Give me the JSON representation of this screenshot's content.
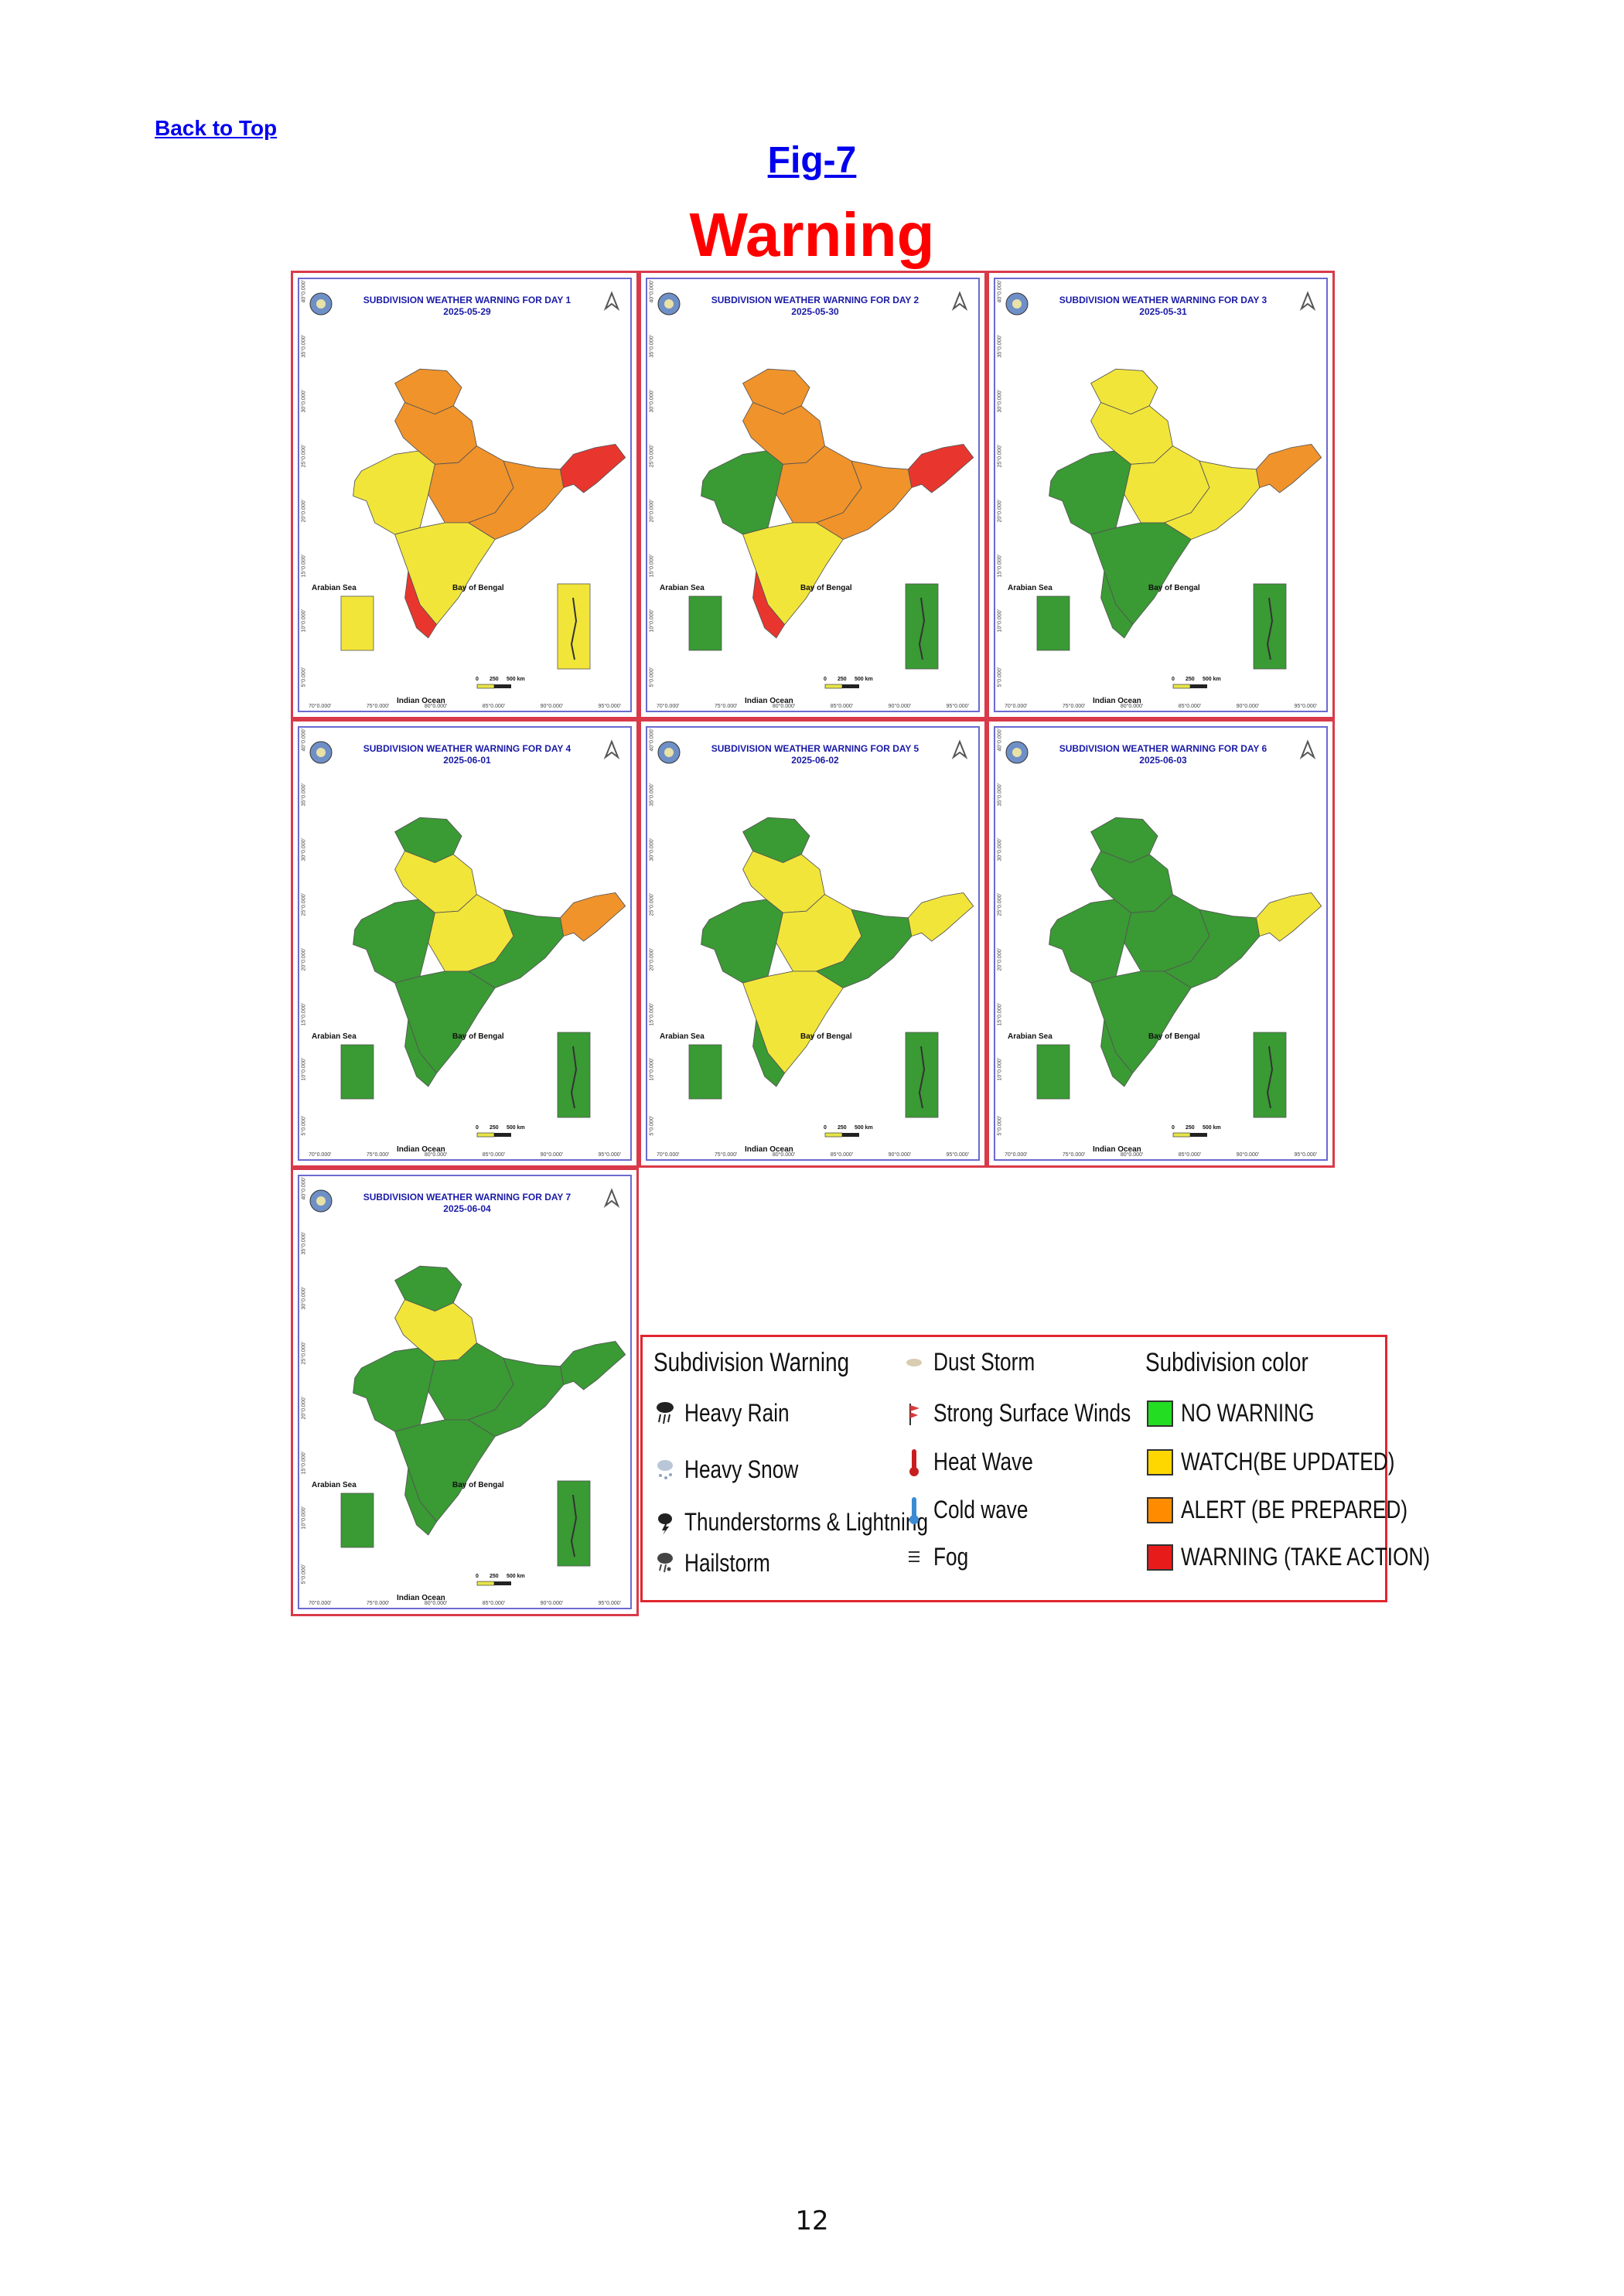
{
  "page": {
    "back_link": "Back to Top",
    "figure_label": "Fig-7",
    "heading": "Warning",
    "page_number": "12"
  },
  "map_common": {
    "arabian_sea": "Arabian Sea",
    "bay_of_bengal": "Bay of Bengal",
    "indian_ocean": "Indian Ocean",
    "scale_labels": [
      "0",
      "250",
      "500 km"
    ],
    "lon_ticks": [
      "70°0.000'",
      "75°0.000'",
      "80°0.000'",
      "85°0.000'",
      "90°0.000'",
      "95°0.000'"
    ],
    "lat_ticks": [
      "40°0.000'",
      "35°0.000'",
      "30°0.000'",
      "25°0.000'",
      "20°0.000'",
      "15°0.000'",
      "10°0.000'",
      "5°0.000'"
    ]
  },
  "maps": [
    {
      "title": "SUBDIVISION WEATHER WARNING FOR DAY 1",
      "date": "2025-05-29",
      "colors": {
        "jk": "#f0932b",
        "north": "#f0932b",
        "west": "#f2e53a",
        "central": "#f0932b",
        "east": "#f0932b",
        "south": "#f2e53a",
        "kerala": "#e8362f",
        "ne": "#e8362f",
        "islands": "#f2e53a"
      }
    },
    {
      "title": "SUBDIVISION WEATHER WARNING FOR DAY 2",
      "date": "2025-05-30",
      "colors": {
        "jk": "#f0932b",
        "north": "#f0932b",
        "west": "#3a9a34",
        "central": "#f0932b",
        "east": "#f0932b",
        "south": "#f2e53a",
        "kerala": "#e8362f",
        "ne": "#e8362f",
        "islands": "#3a9a34"
      }
    },
    {
      "title": "SUBDIVISION WEATHER WARNING FOR DAY 3",
      "date": "2025-05-31",
      "colors": {
        "jk": "#f2e53a",
        "north": "#f2e53a",
        "west": "#3a9a34",
        "central": "#f2e53a",
        "east": "#f2e53a",
        "south": "#3a9a34",
        "kerala": "#3a9a34",
        "ne": "#f0932b",
        "islands": "#3a9a34"
      }
    },
    {
      "title": "SUBDIVISION WEATHER WARNING FOR DAY 4",
      "date": "2025-06-01",
      "colors": {
        "jk": "#3a9a34",
        "north": "#f2e53a",
        "west": "#3a9a34",
        "central": "#f2e53a",
        "east": "#3a9a34",
        "south": "#3a9a34",
        "kerala": "#3a9a34",
        "ne": "#f0932b",
        "islands": "#3a9a34"
      }
    },
    {
      "title": "SUBDIVISION WEATHER WARNING FOR DAY 5",
      "date": "2025-06-02",
      "colors": {
        "jk": "#3a9a34",
        "north": "#f2e53a",
        "west": "#3a9a34",
        "central": "#f2e53a",
        "east": "#3a9a34",
        "south": "#f2e53a",
        "kerala": "#3a9a34",
        "ne": "#f2e53a",
        "islands": "#3a9a34"
      }
    },
    {
      "title": "SUBDIVISION WEATHER WARNING FOR DAY 6",
      "date": "2025-06-03",
      "colors": {
        "jk": "#3a9a34",
        "north": "#3a9a34",
        "west": "#3a9a34",
        "central": "#3a9a34",
        "east": "#3a9a34",
        "south": "#3a9a34",
        "kerala": "#3a9a34",
        "ne": "#f2e53a",
        "islands": "#3a9a34"
      }
    },
    {
      "title": "SUBDIVISION WEATHER WARNING FOR DAY 7",
      "date": "2025-06-04",
      "colors": {
        "jk": "#3a9a34",
        "north": "#f2e53a",
        "west": "#3a9a34",
        "central": "#3a9a34",
        "east": "#3a9a34",
        "south": "#3a9a34",
        "kerala": "#3a9a34",
        "ne": "#3a9a34",
        "islands": "#3a9a34"
      }
    }
  ],
  "legend": {
    "warning_heading": "Subdivision Warning",
    "warning_items": [
      {
        "label": "Heavy Rain",
        "icon": "heavy-rain-icon"
      },
      {
        "label": "Heavy Snow",
        "icon": "heavy-snow-icon"
      },
      {
        "label": "Thunderstorms & Lightning",
        "icon": "thunderstorm-icon"
      },
      {
        "label": "Hailstorm",
        "icon": "hailstorm-icon"
      }
    ],
    "other_items": [
      {
        "label": "Dust Storm",
        "icon": "dust-storm-icon"
      },
      {
        "label": "Strong Surface Winds",
        "icon": "strong-wind-icon"
      },
      {
        "label": "Heat Wave",
        "icon": "heat-wave-icon"
      },
      {
        "label": "Cold wave",
        "icon": "cold-wave-icon"
      },
      {
        "label": "Fog",
        "icon": "fog-icon"
      }
    ],
    "color_heading": "Subdivision color",
    "color_items": [
      {
        "label": "NO WARNING",
        "color": "#22dd22"
      },
      {
        "label": "WATCH(BE UPDATED)",
        "color": "#ffd700"
      },
      {
        "label": "ALERT (BE PREPARED)",
        "color": "#ff8c00"
      },
      {
        "label": "WARNING (TAKE ACTION)",
        "color": "#e81b1b"
      }
    ]
  }
}
